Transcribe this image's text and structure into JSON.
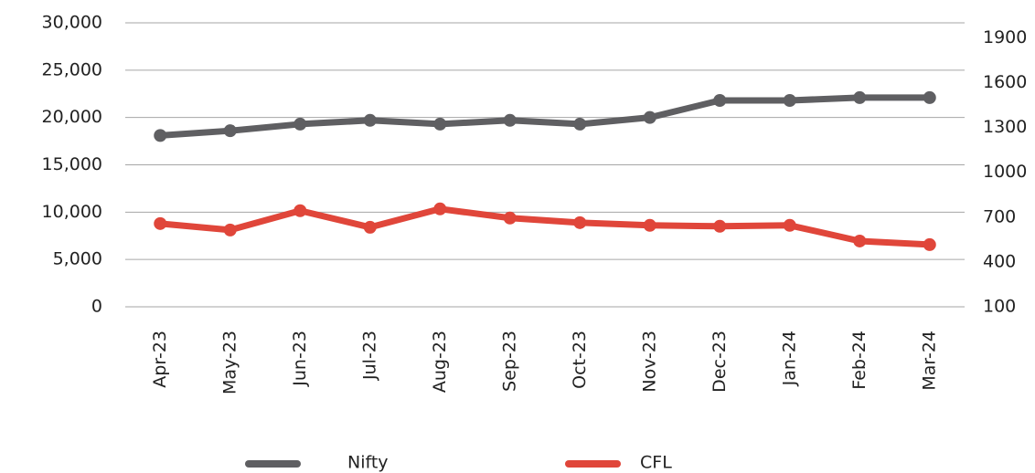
{
  "chart_data": {
    "type": "line",
    "categories": [
      "Apr-23",
      "May-23",
      "Jun-23",
      "Jul-23",
      "Aug-23",
      "Sep-23",
      "Oct-23",
      "Nov-23",
      "Dec-23",
      "Jan-24",
      "Feb-24",
      "Mar-24"
    ],
    "series": [
      {
        "name": "Nifty",
        "color": "#5f5f62",
        "values": [
          18100,
          18600,
          19300,
          19700,
          19300,
          19700,
          19300,
          20000,
          21800,
          21800,
          22100,
          22100
        ]
      },
      {
        "name": "CFL",
        "color": "#e0463a",
        "axis": "y2",
        "values": [
          657,
          614,
          743,
          632,
          755,
          694,
          663,
          645,
          639,
          645,
          540,
          516
        ]
      }
    ],
    "ylim": [
      0,
      30000
    ],
    "yticks": [
      0,
      {
        "value": 5000,
        "label": "5,000"
      },
      {
        "value": 10000,
        "label": "10,000"
      },
      {
        "value": 15000,
        "label": "15,000"
      },
      {
        "value": 20000,
        "label": "20,000"
      },
      {
        "value": 25000,
        "label": "25,000"
      },
      {
        "value": 30000,
        "label": "30,000"
      }
    ],
    "y2lim": [
      100,
      2000
    ],
    "y2ticks": [
      100,
      400,
      700,
      1000,
      1300,
      1600,
      1900
    ],
    "grid": true,
    "legend": "bottom"
  }
}
